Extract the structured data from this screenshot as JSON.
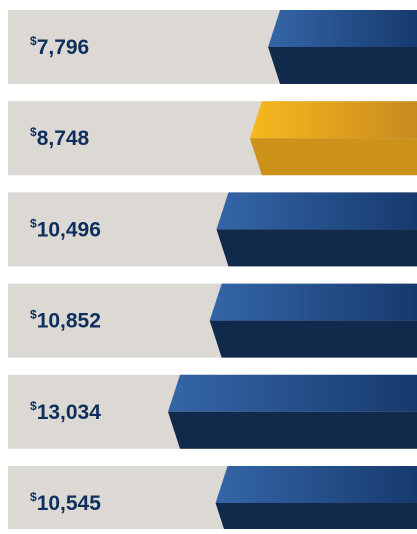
{
  "chart_data": {
    "type": "bar",
    "values": [
      7796,
      8748,
      10496,
      10852,
      13034,
      10545
    ],
    "value_labels": [
      "$7,796",
      "$8,748",
      "$10,496",
      "$10,852",
      "$13,034",
      "$10,545"
    ],
    "colors": [
      "#1f4b86",
      "#e3a21c",
      "#1f4b86",
      "#1f4b86",
      "#1f4b86",
      "#1f4b86"
    ]
  }
}
